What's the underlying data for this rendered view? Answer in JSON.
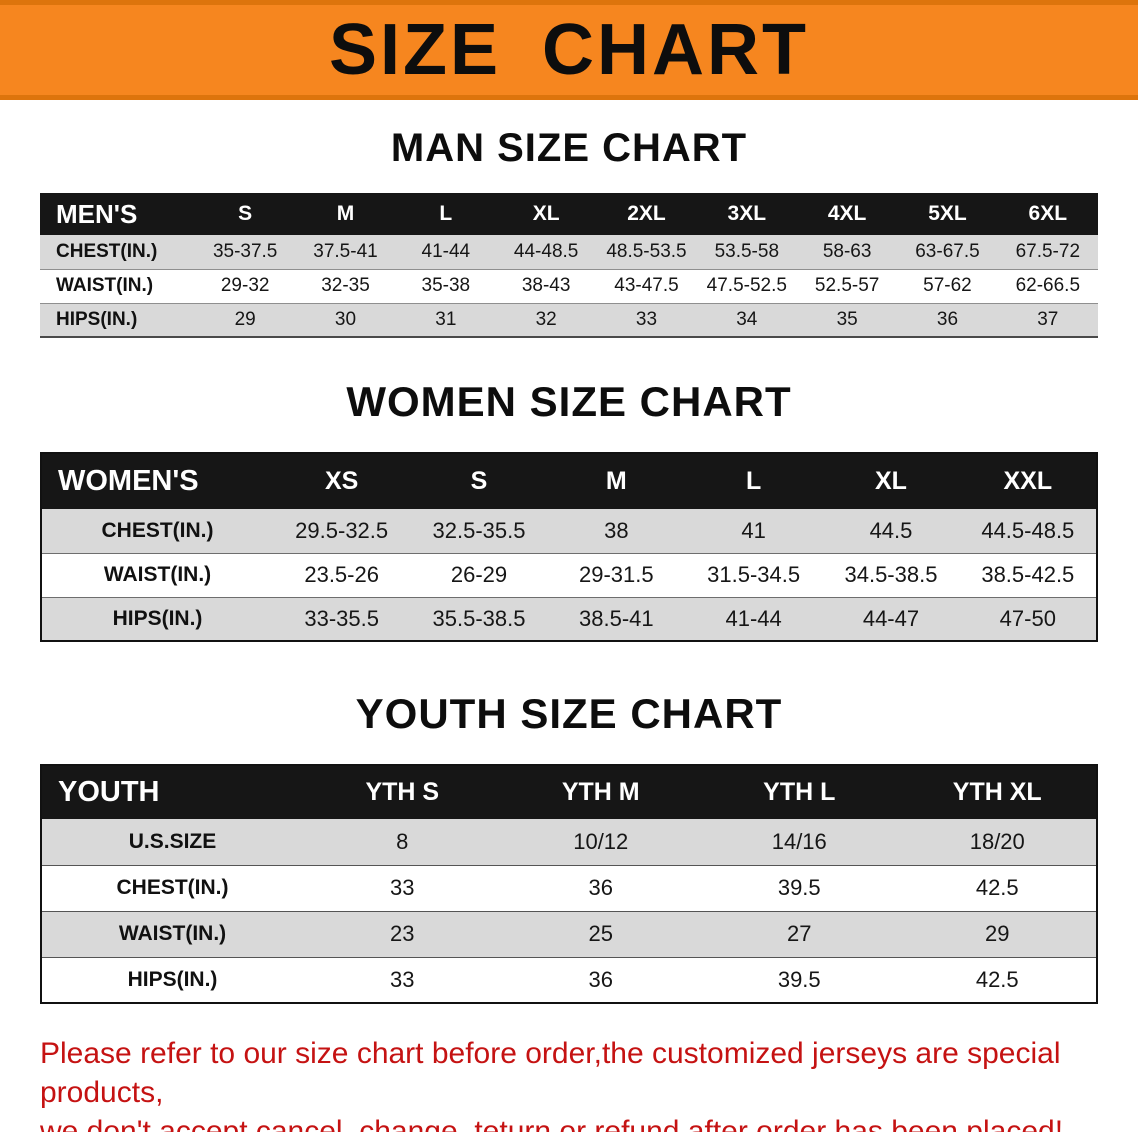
{
  "banner": {
    "title": "SIZE CHART",
    "bg_color": "#f6861f",
    "text_color": "#0d0d0d"
  },
  "chart_data": [
    {
      "type": "table",
      "title": "MAN SIZE CHART",
      "header": [
        "MEN'S",
        "S",
        "M",
        "L",
        "XL",
        "2XL",
        "3XL",
        "4XL",
        "5XL",
        "6XL"
      ],
      "rows": [
        [
          "CHEST(IN.)",
          "35-37.5",
          "37.5-41",
          "41-44",
          "44-48.5",
          "48.5-53.5",
          "53.5-58",
          "58-63",
          "63-67.5",
          "67.5-72"
        ],
        [
          "WAIST(IN.)",
          "29-32",
          "32-35",
          "35-38",
          "38-43",
          "43-47.5",
          "47.5-52.5",
          "52.5-57",
          "57-62",
          "62-66.5"
        ],
        [
          "HIPS(IN.)",
          "29",
          "30",
          "31",
          "32",
          "33",
          "34",
          "35",
          "36",
          "37"
        ]
      ]
    },
    {
      "type": "table",
      "title": "WOMEN SIZE CHART",
      "header": [
        "WOMEN'S",
        "XS",
        "S",
        "M",
        "L",
        "XL",
        "XXL"
      ],
      "rows": [
        [
          "CHEST(IN.)",
          "29.5-32.5",
          "32.5-35.5",
          "38",
          "41",
          "44.5",
          "44.5-48.5"
        ],
        [
          "WAIST(IN.)",
          "23.5-26",
          "26-29",
          "29-31.5",
          "31.5-34.5",
          "34.5-38.5",
          "38.5-42.5"
        ],
        [
          "HIPS(IN.)",
          "33-35.5",
          "35.5-38.5",
          "38.5-41",
          "41-44",
          "44-47",
          "47-50"
        ]
      ]
    },
    {
      "type": "table",
      "title": "YOUTH SIZE CHART",
      "header": [
        "YOUTH",
        "YTH S",
        "YTH M",
        "YTH L",
        "YTH XL"
      ],
      "rows": [
        [
          "U.S.SIZE",
          "8",
          "10/12",
          "14/16",
          "18/20"
        ],
        [
          "CHEST(IN.)",
          "33",
          "36",
          "39.5",
          "42.5"
        ],
        [
          "WAIST(IN.)",
          "23",
          "25",
          "27",
          "29"
        ],
        [
          "HIPS(IN.)",
          "33",
          "36",
          "39.5",
          "42.5"
        ]
      ]
    }
  ],
  "footer": {
    "line1": "Please refer to our size chart before order,the customized jerseys are special products,",
    "line2": "we don't accept cancel, change, teturn or refund after order has been placed!",
    "text_color": "#c51212"
  }
}
